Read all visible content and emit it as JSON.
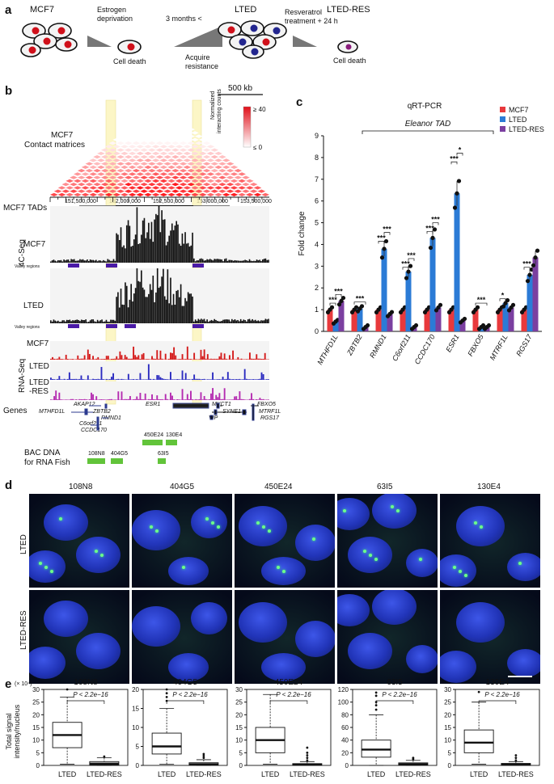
{
  "panels": {
    "a": "a",
    "b": "b",
    "c": "c",
    "d": "d",
    "e": "e"
  },
  "panel_a": {
    "stage_mcf7": "MCF7",
    "stage_lted": "LTED",
    "stage_ltedres": "LTED-RES",
    "estrogen_line1": "Estrogen",
    "estrogen_line2": "deprivation",
    "months": "3 months <",
    "resveratrol_line1": "Resveratrol",
    "resveratrol_line2": "treatment + 24 h",
    "cell_death_1": "Cell death",
    "acquire_line1": "Acquire",
    "acquire_line2": "resistance",
    "cell_death_2": "Cell death"
  },
  "panel_b": {
    "scale_bar": "500 kb",
    "contact_title_line1": "MCF7",
    "contact_title_line2": "Contact matrices",
    "colorbar_label_line1": "Normalized",
    "colorbar_label_line2": "interacting counts",
    "colorbar_max": "≥ 40",
    "colorbar_min": "≤ 0",
    "coords": [
      "151,500,000",
      "152,000,000",
      "152,500,000",
      "153,000,000",
      "153,500,000"
    ],
    "tads_label": "MCF7 TADs",
    "fourc_label": "4C-Seq",
    "track_mcf7": "MCF7",
    "track_lted": "LTED",
    "valley_label_1": "Valley regions",
    "valley_label_2": "Valley regions",
    "rnaseq_label": "RNA-Seq",
    "rna_mcf7": "MCF7",
    "rna_lted": "LTED",
    "rna_ltedres_1": "LTED",
    "rna_ltedres_2": "-RES",
    "genes_label": "Genes",
    "genes": [
      "AKAP12",
      "ESR1",
      "MYCT1",
      "FBXO5",
      "MTHFD1L",
      "ZBTB2",
      "RMND1",
      "SYNE1",
      "MTRF1L",
      "VIP",
      "RGS17",
      "C6orf211",
      "CCDC170"
    ],
    "bac_label_line1": "BAC DNA",
    "bac_label_line2": "for RNA Fish",
    "bac_names": [
      "450E24",
      "130E4",
      "108N8",
      "404G5",
      "63I5"
    ]
  },
  "chart_data": [
    {
      "type": "bar",
      "panel": "c",
      "title": "qRT-PCR",
      "subtitle": "Eleanor TAD",
      "ylabel": "Fold change",
      "xlabel": "",
      "ylim": [
        0,
        9
      ],
      "yticks": [
        "0",
        "1",
        "2",
        "3",
        "4",
        "5",
        "6",
        "7",
        "8",
        "9"
      ],
      "categories": [
        "MTHFD1L",
        "ZBTB2",
        "RMND1",
        "C6orf211",
        "CCDC170",
        "ESR1",
        "FBXO5",
        "MTRF1L",
        "RGS17"
      ],
      "series": [
        {
          "name": "MCF7",
          "color": "#e8393c",
          "values": [
            1.0,
            1.0,
            1.0,
            1.0,
            1.0,
            1.0,
            1.0,
            1.0,
            1.0
          ]
        },
        {
          "name": "LTED",
          "color": "#2b7bd6",
          "values": [
            0.45,
            1.05,
            3.8,
            2.75,
            4.3,
            6.35,
            0.2,
            1.3,
            2.6
          ]
        },
        {
          "name": "LTED-RES",
          "color": "#7b3fa0",
          "values": [
            1.4,
            0.2,
            0.8,
            0.2,
            1.1,
            0.5,
            0.2,
            1.1,
            3.4
          ]
        }
      ],
      "significance": [
        "***",
        "***",
        "***",
        "***",
        "***",
        "***",
        "***",
        "***",
        "***",
        "***",
        "*",
        "***",
        "*",
        "***",
        "**"
      ],
      "legend": [
        "MCF7",
        "LTED",
        "LTED-RES"
      ]
    },
    {
      "type": "boxplot",
      "panel": "e",
      "ylabel_line1": "Total signal",
      "ylabel_line2": "intensity/nucleus",
      "scale_note": "(× 10⁴)",
      "pvalue": "P < 2.2e−16",
      "categories": [
        "LTED",
        "LTED-RES"
      ],
      "plots": [
        {
          "title": "108N8",
          "ylim": [
            0,
            30
          ],
          "yticks": [
            "0",
            "5",
            "10",
            "15",
            "20",
            "25",
            "30"
          ],
          "LTED": {
            "min": 0.5,
            "q1": 7,
            "median": 12,
            "q3": 17,
            "max": 27,
            "outliers": [
              30
            ]
          },
          "LTED-RES": {
            "min": 0,
            "q1": 0.2,
            "median": 0.7,
            "q3": 1.5,
            "max": 3,
            "outliers": [
              3.5
            ]
          }
        },
        {
          "title": "404G5",
          "ylim": [
            0,
            20
          ],
          "yticks": [
            "0",
            "5",
            "10",
            "15",
            "20"
          ],
          "LTED": {
            "min": 0.3,
            "q1": 3,
            "median": 5,
            "q3": 8.5,
            "max": 15,
            "outliers": [
              17,
              18,
              19,
              20
            ]
          },
          "LTED-RES": {
            "min": 0,
            "q1": 0.1,
            "median": 0.3,
            "q3": 0.7,
            "max": 1.5,
            "outliers": [
              2,
              2.5,
              3
            ]
          }
        },
        {
          "title": "450E24",
          "ylim": [
            0,
            30
          ],
          "yticks": [
            "0",
            "5",
            "10",
            "15",
            "20",
            "25",
            "30"
          ],
          "LTED": {
            "min": 0.5,
            "q1": 5,
            "median": 10,
            "q3": 15,
            "max": 28,
            "outliers": []
          },
          "LTED-RES": {
            "min": 0,
            "q1": 0.1,
            "median": 0.3,
            "q3": 0.7,
            "max": 1.5,
            "outliers": [
              2,
              3,
              4,
              5,
              7
            ]
          }
        },
        {
          "title": "63I5",
          "ylim": [
            0,
            120
          ],
          "yticks": [
            "0",
            "20",
            "40",
            "60",
            "80",
            "100",
            "120"
          ],
          "LTED": {
            "min": 0,
            "q1": 13,
            "median": 25,
            "q3": 40,
            "max": 80,
            "outliers": [
              88,
              95,
              100,
              110,
              115
            ]
          },
          "LTED-RES": {
            "min": 0,
            "q1": 0.5,
            "median": 2,
            "q3": 4,
            "max": 8,
            "outliers": [
              10,
              12
            ]
          }
        },
        {
          "title": "130E4",
          "ylim": [
            0,
            30
          ],
          "yticks": [
            "0",
            "5",
            "10",
            "15",
            "20",
            "25",
            "30"
          ],
          "LTED": {
            "min": 0.5,
            "q1": 5,
            "median": 9,
            "q3": 14,
            "max": 25,
            "outliers": [
              29
            ]
          },
          "LTED-RES": {
            "min": 0,
            "q1": 0.1,
            "median": 0.3,
            "q3": 0.8,
            "max": 1.5,
            "outliers": [
              2,
              3,
              4
            ]
          }
        }
      ]
    }
  ],
  "panel_d": {
    "columns": [
      "108N8",
      "404G5",
      "450E24",
      "63I5",
      "130E4"
    ],
    "rows": [
      "LTED",
      "LTED-RES"
    ]
  }
}
